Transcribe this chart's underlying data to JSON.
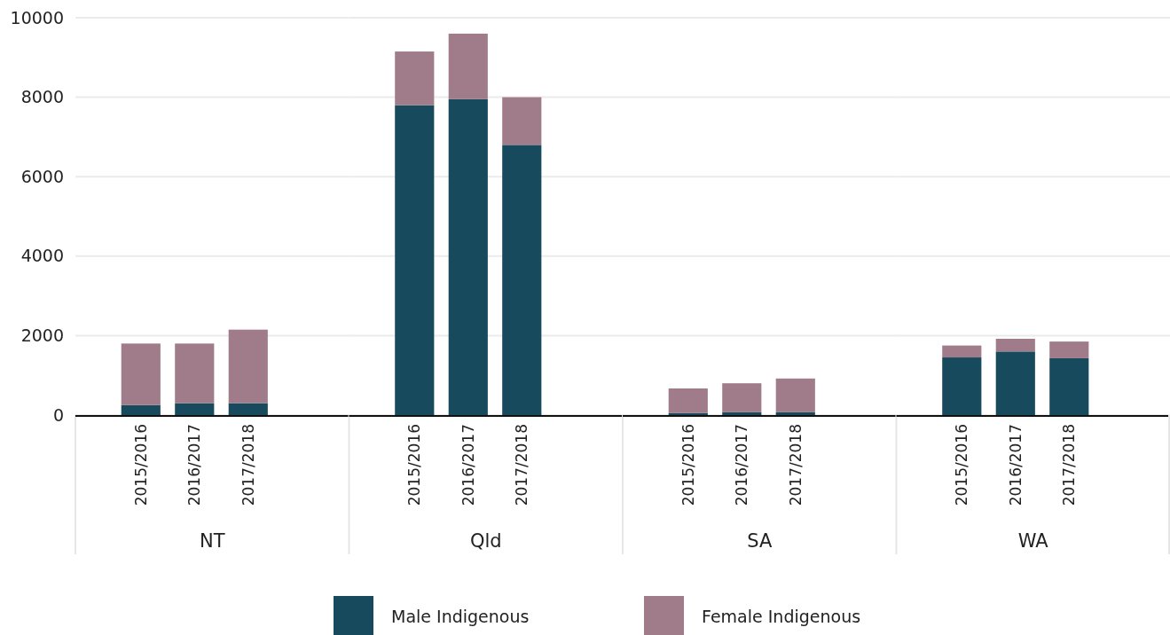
{
  "chart_data": [
    {
      "type": "bar",
      "stacked": true,
      "xlabel": "NT",
      "categories": [
        "2015/2016",
        "2016/2017",
        "2017/2018"
      ],
      "series": [
        {
          "name": "Male Indigenous",
          "color": "#164a5c",
          "values": [
            250,
            300,
            300
          ]
        },
        {
          "name": "Female Indigenous",
          "color": "#a07c8b",
          "values": [
            1550,
            1500,
            1850
          ]
        }
      ],
      "ylim": [
        0,
        10000
      ],
      "yticks": [
        0,
        2000,
        4000,
        6000,
        8000,
        10000
      ],
      "grid": "y",
      "legend": "bottom"
    },
    {
      "type": "bar",
      "stacked": true,
      "xlabel": "Qld",
      "categories": [
        "2015/2016",
        "2016/2017",
        "2017/2018"
      ],
      "series": [
        {
          "color": "#164a5c",
          "values": [
            7800,
            7950,
            6800
          ]
        },
        {
          "color": "#a07c8b",
          "values": [
            1350,
            1650,
            1200
          ]
        }
      ],
      "ylim": [
        0,
        10000
      ],
      "yticks": [
        0,
        2000,
        4000,
        6000,
        8000,
        10000
      ],
      "grid": "y",
      "tick_labels": "x"
    },
    {
      "type": "bar",
      "stacked": true,
      "xlabel": "SA",
      "categories": [
        "2015/2016",
        "2016/2017",
        "2017/2018"
      ],
      "series": [
        {
          "color": "#164a5c",
          "values": [
            50,
            70,
            70
          ]
        },
        {
          "color": "#a07c8b",
          "values": [
            620,
            730,
            850
          ]
        }
      ],
      "ylim": [
        0,
        10000
      ],
      "yticks": [
        0,
        2000,
        4000,
        6000,
        8000,
        10000
      ],
      "grid": "y",
      "tick_labels": "x"
    },
    {
      "type": "bar",
      "stacked": true,
      "xlabel": "WA",
      "categories": [
        "2015/2016",
        "2016/2017",
        "2017/2018"
      ],
      "series": [
        {
          "color": "#164a5c",
          "values": [
            1450,
            1600,
            1430
          ]
        },
        {
          "color": "#a07c8b",
          "values": [
            300,
            320,
            420
          ]
        }
      ],
      "ylim": [
        0,
        10000
      ],
      "yticks": [
        0,
        2000,
        4000,
        6000,
        8000,
        10000
      ],
      "grid": "y",
      "tick_labels": "x"
    }
  ]
}
